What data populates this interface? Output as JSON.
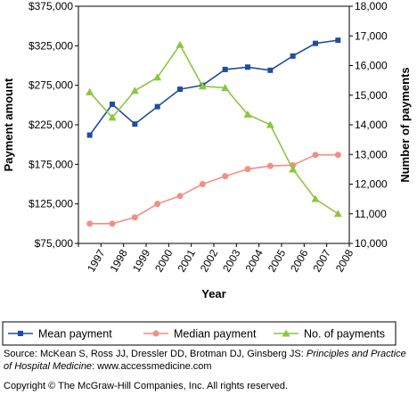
{
  "chart_data": {
    "type": "line",
    "xlabel": "Year",
    "ylabel_left": "Payment amount",
    "ylabel_right": "Number of payments",
    "x": [
      "1997",
      "1998",
      "1999",
      "2000",
      "2001",
      "2002",
      "2003",
      "2004",
      "2005",
      "2006",
      "2007",
      "2008"
    ],
    "left_axis": {
      "ylim": [
        75000,
        375000
      ],
      "ticks": [
        75000,
        125000,
        175000,
        225000,
        275000,
        325000,
        375000
      ],
      "tick_labels": [
        "$75,000",
        "$125,000",
        "$175,000",
        "$225,000",
        "$275,000",
        "$325,000",
        "$375,000"
      ]
    },
    "right_axis": {
      "ylim": [
        10000,
        18000
      ],
      "ticks": [
        10000,
        11000,
        12000,
        13000,
        14000,
        15000,
        16000,
        17000,
        18000
      ],
      "tick_labels": [
        "10,000",
        "11,000",
        "12,000",
        "13,000",
        "14,000",
        "15,000",
        "16,000",
        "17,000",
        "18,000"
      ]
    },
    "series": [
      {
        "name": "Mean payment",
        "axis": "left",
        "color": "#1f4e9c",
        "marker": "square",
        "values": [
          212000,
          251000,
          226000,
          248000,
          270000,
          275000,
          295000,
          298000,
          294000,
          312000,
          328000,
          332000
        ]
      },
      {
        "name": "Median payment",
        "axis": "left",
        "color": "#f28f84",
        "marker": "circle",
        "values": [
          100000,
          100000,
          108000,
          125000,
          135000,
          150000,
          160000,
          169000,
          173000,
          174000,
          187000,
          187000
        ]
      },
      {
        "name": "No. of payments",
        "axis": "right",
        "color": "#8cc63f",
        "marker": "triangle",
        "values": [
          15100,
          14250,
          15150,
          15600,
          16700,
          15300,
          15250,
          14350,
          14000,
          12500,
          11500,
          11000
        ]
      }
    ],
    "grid": false,
    "legend_position": "bottom"
  },
  "source": {
    "prefix": "Source: McKean S, Ross JJ, Dressler DD, Brotman DJ, Ginsberg JS: ",
    "title": "Principles and Practice of Hospital Medicine",
    "suffix": ": www.accessmedicine.com"
  },
  "copyright": "Copyright © The McGraw-Hill Companies, Inc. All rights reserved."
}
